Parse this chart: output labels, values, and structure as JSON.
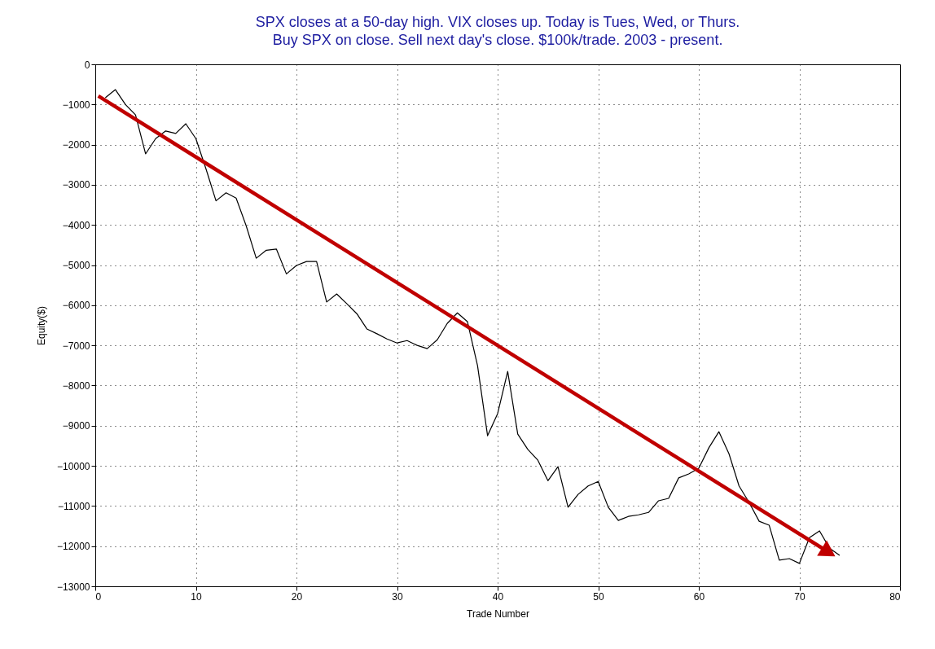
{
  "chart_data": {
    "type": "line",
    "title": "SPX closes at a 50-day high. VIX closes up. Today is Tues, Wed, or Thurs.",
    "subtitle": "Buy SPX on close. Sell next day's close. $100k/trade. 2003 - present.",
    "xlabel": "Trade Number",
    "ylabel": "Equity($)",
    "x": [
      1,
      2,
      3,
      4,
      5,
      6,
      7,
      8,
      9,
      10,
      11,
      12,
      13,
      14,
      15,
      16,
      17,
      18,
      19,
      20,
      21,
      22,
      23,
      24,
      25,
      26,
      27,
      28,
      29,
      30,
      31,
      32,
      33,
      34,
      35,
      36,
      37,
      38,
      39,
      40,
      41,
      42,
      43,
      44,
      45,
      46,
      47,
      48,
      49,
      50,
      51,
      52,
      53,
      54,
      55,
      56,
      57,
      58,
      59,
      60,
      61,
      62,
      63,
      64,
      65,
      66,
      67,
      68,
      69,
      70,
      71,
      72,
      73,
      74
    ],
    "series": [
      {
        "color": "#000000",
        "values": [
          -830,
          -630,
          -1000,
          -1260,
          -2230,
          -1850,
          -1660,
          -1720,
          -1480,
          -1850,
          -2600,
          -3400,
          -3200,
          -3330,
          -4020,
          -4830,
          -4630,
          -4600,
          -5220,
          -5010,
          -4910,
          -4910,
          -5920,
          -5720,
          -5960,
          -6210,
          -6590,
          -6710,
          -6840,
          -6940,
          -6880,
          -7000,
          -7080,
          -6860,
          -6450,
          -6190,
          -6410,
          -7500,
          -9250,
          -8700,
          -7650,
          -9210,
          -9590,
          -9860,
          -10370,
          -10020,
          -11030,
          -10710,
          -10500,
          -10390,
          -11030,
          -11360,
          -11260,
          -11220,
          -11160,
          -10870,
          -10810,
          -10300,
          -10200,
          -10060,
          -9550,
          -9150,
          -9700,
          -10500,
          -10910,
          -11380,
          -11480,
          -12350,
          -12310,
          -12430,
          -11790,
          -11620,
          -12050,
          -12230
        ]
      },
      {
        "type": "line",
        "color": "#c00000",
        "x": [
          0.3,
          72.9
        ],
        "values": [
          -790,
          -12150
        ]
      }
    ],
    "xlim": [
      0,
      80
    ],
    "xticks": [
      0,
      10,
      20,
      30,
      40,
      50,
      60,
      70,
      80
    ],
    "ylim": [
      -13000,
      0
    ],
    "yticks": [
      -13000,
      -12000,
      -11000,
      -10000,
      -9000,
      -8000,
      -7000,
      -6000,
      -5000,
      -4000,
      -3000,
      -2000,
      -1000,
      0
    ],
    "grid": true,
    "line_style": "solid"
  }
}
